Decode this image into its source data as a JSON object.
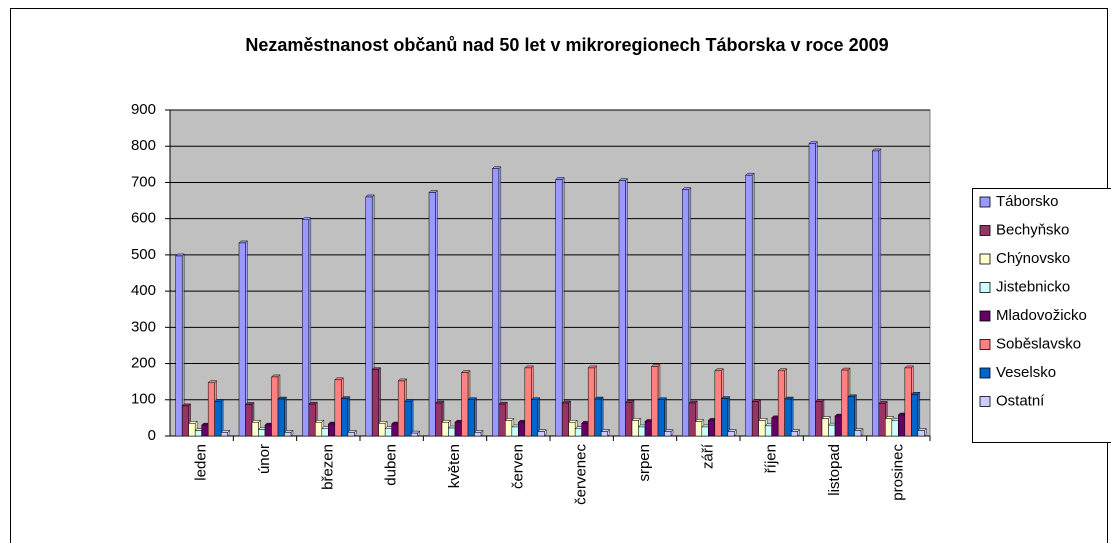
{
  "chart_data": {
    "type": "bar",
    "title": "Nezaměstnanost občanů nad 50 let v mikroregionech Táborska v roce 2009",
    "categories": [
      "leden",
      "únor",
      "březen",
      "duben",
      "květen",
      "červen",
      "červenec",
      "srpen",
      "září",
      "říjen",
      "listopad",
      "prosinec"
    ],
    "series": [
      {
        "name": "Táborsko",
        "color": "#9999ff",
        "values": [
          497,
          533,
          597,
          660,
          672,
          738,
          708,
          705,
          680,
          720,
          807,
          787
        ]
      },
      {
        "name": "Bechyňsko",
        "color": "#993366",
        "values": [
          83,
          87,
          88,
          183,
          91,
          88,
          91,
          93,
          91,
          95,
          95,
          90
        ]
      },
      {
        "name": "Chýnovsko",
        "color": "#ffffcc",
        "values": [
          35,
          38,
          38,
          35,
          38,
          43,
          38,
          43,
          40,
          43,
          48,
          48
        ]
      },
      {
        "name": "Jistebnicko",
        "color": "#ccffff",
        "values": [
          15,
          18,
          20,
          20,
          22,
          25,
          20,
          25,
          25,
          28,
          30,
          42
        ]
      },
      {
        "name": "Mladovožicko",
        "color": "#660066",
        "values": [
          30,
          30,
          33,
          33,
          38,
          38,
          35,
          40,
          43,
          50,
          55,
          58
        ]
      },
      {
        "name": "Soběslavsko",
        "color": "#ff8080",
        "values": [
          147,
          163,
          155,
          152,
          175,
          188,
          188,
          192,
          180,
          180,
          182,
          188
        ]
      },
      {
        "name": "Veselsko",
        "color": "#0066cc",
        "values": [
          95,
          102,
          103,
          95,
          100,
          100,
          102,
          100,
          103,
          102,
          108,
          115
        ]
      },
      {
        "name": "Ostatní",
        "color": "#ccccff",
        "values": [
          10,
          10,
          10,
          8,
          10,
          12,
          12,
          12,
          12,
          12,
          15,
          15
        ]
      }
    ],
    "ylim": [
      0,
      900
    ],
    "yticks": [
      0,
      100,
      200,
      300,
      400,
      500,
      600,
      700,
      800,
      900
    ],
    "grid": true,
    "legend": "right"
  }
}
